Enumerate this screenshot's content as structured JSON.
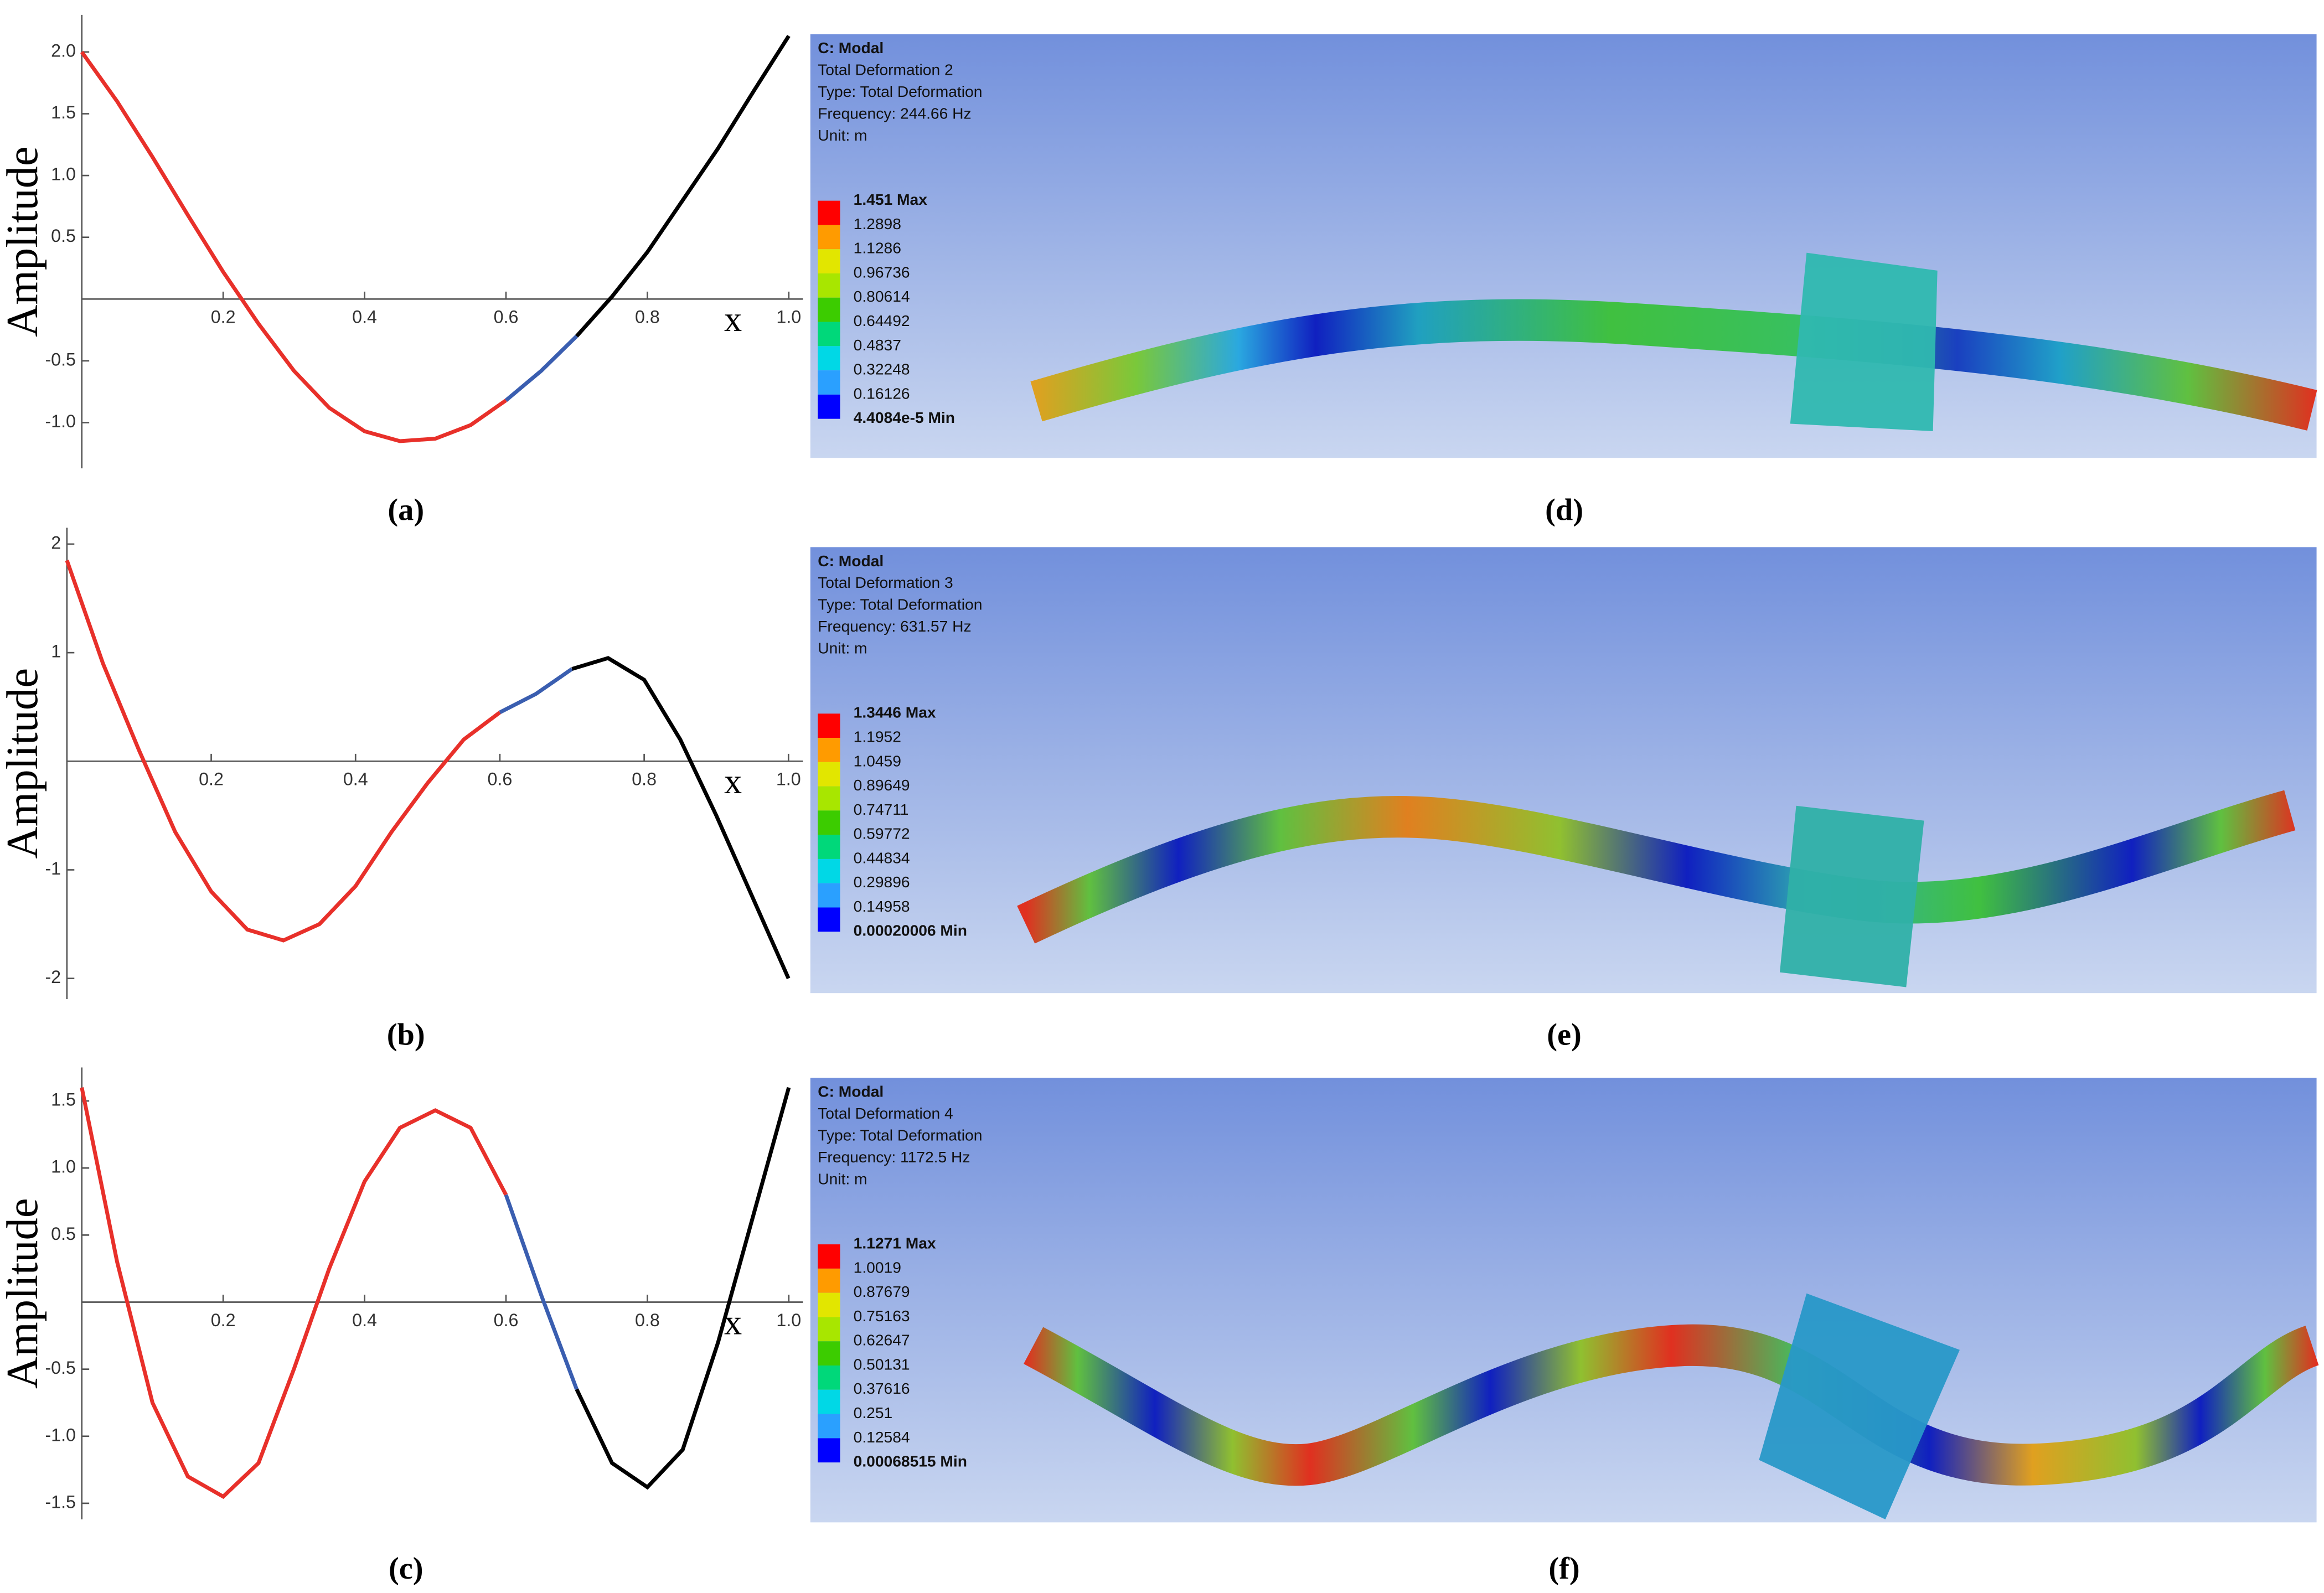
{
  "chart_data": [
    {
      "type": "line",
      "caption": "(a)",
      "y_label": "Amplitude",
      "x_label": "x",
      "x": [
        0,
        0.05,
        0.1,
        0.15,
        0.2,
        0.25,
        0.3,
        0.35,
        0.4,
        0.45,
        0.5,
        0.55,
        0.6,
        0.65,
        0.7,
        0.75,
        0.8,
        0.85,
        0.9,
        0.95,
        1.0
      ],
      "series": [
        {
          "color": "#e8302a",
          "values": [
            2.0,
            1.6,
            1.15,
            0.68,
            0.22,
            -0.2,
            -0.58,
            -0.88,
            -1.07,
            -1.15,
            -1.13,
            -1.02,
            -0.82,
            null,
            null,
            null,
            null,
            null,
            null,
            null,
            null
          ]
        },
        {
          "color": "#3a5eb0",
          "values": [
            null,
            null,
            null,
            null,
            null,
            null,
            null,
            null,
            null,
            null,
            null,
            null,
            -0.82,
            -0.58,
            -0.3,
            null,
            null,
            null,
            null,
            null,
            null
          ]
        },
        {
          "color": "#000000",
          "values": [
            null,
            null,
            null,
            null,
            null,
            null,
            null,
            null,
            null,
            null,
            null,
            null,
            null,
            null,
            -0.3,
            0.02,
            0.38,
            0.8,
            1.22,
            1.68,
            2.13
          ]
        }
      ],
      "xlim": [
        0,
        1.02
      ],
      "ylim": [
        -1.37,
        2.3
      ],
      "xticks": [
        0.2,
        0.4,
        0.6,
        0.8,
        {
          "value": 1.0,
          "label": "1.0"
        }
      ],
      "yticks": [
        {
          "value": -1.0,
          "label": "-1.0"
        },
        -0.5,
        0.5,
        {
          "value": 1.0,
          "label": "1.0"
        },
        1.5,
        {
          "value": 2.0,
          "label": "2.0"
        }
      ]
    },
    {
      "type": "line",
      "caption": "(b)",
      "y_label": "Amplitude",
      "x_label": "x",
      "x": [
        0,
        0.05,
        0.1,
        0.15,
        0.2,
        0.25,
        0.3,
        0.35,
        0.4,
        0.45,
        0.5,
        0.55,
        0.6,
        0.65,
        0.7,
        0.75,
        0.8,
        0.85,
        0.9,
        0.95,
        1.0
      ],
      "series": [
        {
          "color": "#e8302a",
          "values": [
            1.85,
            0.9,
            0.1,
            -0.65,
            -1.2,
            -1.55,
            -1.65,
            -1.5,
            -1.15,
            -0.65,
            -0.2,
            0.2,
            0.45,
            null,
            null,
            null,
            null,
            null,
            null,
            null,
            null
          ]
        },
        {
          "color": "#3a5eb0",
          "values": [
            null,
            null,
            null,
            null,
            null,
            null,
            null,
            null,
            null,
            null,
            null,
            null,
            0.45,
            0.62,
            0.85,
            null,
            null,
            null,
            null,
            null,
            null
          ]
        },
        {
          "color": "#000000",
          "values": [
            null,
            null,
            null,
            null,
            null,
            null,
            null,
            null,
            null,
            null,
            null,
            null,
            null,
            null,
            0.85,
            0.95,
            0.75,
            0.2,
            -0.5,
            -1.25,
            -2.0
          ]
        }
      ],
      "xlim": [
        0,
        1.02
      ],
      "ylim": [
        -2.19,
        2.15
      ],
      "xticks": [
        0.2,
        0.4,
        0.6,
        0.8,
        {
          "value": 1.0,
          "label": "1.0"
        }
      ],
      "yticks": [
        -2,
        -1,
        1,
        2
      ]
    },
    {
      "type": "line",
      "caption": "(c)",
      "y_label": "Amplitude",
      "x_label": "x",
      "x": [
        0,
        0.05,
        0.1,
        0.15,
        0.2,
        0.25,
        0.3,
        0.35,
        0.4,
        0.45,
        0.5,
        0.55,
        0.6,
        0.65,
        0.7,
        0.75,
        0.8,
        0.85,
        0.9,
        0.95,
        1.0
      ],
      "series": [
        {
          "color": "#e8302a",
          "values": [
            1.6,
            0.3,
            -0.75,
            -1.3,
            -1.45,
            -1.2,
            -0.5,
            0.25,
            0.9,
            1.3,
            1.43,
            1.3,
            0.8,
            null,
            null,
            null,
            null,
            null,
            null,
            null,
            null
          ]
        },
        {
          "color": "#3a5eb0",
          "values": [
            null,
            null,
            null,
            null,
            null,
            null,
            null,
            null,
            null,
            null,
            null,
            null,
            0.8,
            0.05,
            -0.65,
            null,
            null,
            null,
            null,
            null,
            null
          ]
        },
        {
          "color": "#000000",
          "values": [
            null,
            null,
            null,
            null,
            null,
            null,
            null,
            null,
            null,
            null,
            null,
            null,
            null,
            null,
            -0.65,
            -1.2,
            -1.38,
            -1.1,
            -0.3,
            0.65,
            1.6
          ]
        }
      ],
      "xlim": [
        0,
        1.02
      ],
      "ylim": [
        -1.62,
        1.75
      ],
      "xticks": [
        0.2,
        0.4,
        0.6,
        0.8,
        {
          "value": 1.0,
          "label": "1.0"
        }
      ],
      "yticks": [
        -1.5,
        {
          "value": -1.0,
          "label": "-1.0"
        },
        -0.5,
        0.5,
        {
          "value": 1.0,
          "label": "1.0"
        },
        1.5
      ]
    }
  ],
  "panels": [
    {
      "caption": "(d)",
      "header": [
        "C: Modal",
        "Total Deformation 2",
        "Type: Total Deformation",
        "Frequency: 244.66 Hz",
        "Unit: m"
      ],
      "legend": [
        "1.451 Max",
        "1.2898",
        "1.1286",
        "0.96736",
        "0.80614",
        "0.64492",
        "0.4837",
        "0.32248",
        "0.16126",
        "4.4084e-5 Min"
      ]
    },
    {
      "caption": "(e)",
      "header": [
        "C: Modal",
        "Total Deformation 3",
        "Type: Total Deformation",
        "Frequency: 631.57 Hz",
        "Unit: m"
      ],
      "legend": [
        "1.3446 Max",
        "1.1952",
        "1.0459",
        "0.89649",
        "0.74711",
        "0.59772",
        "0.44834",
        "0.29896",
        "0.14958",
        "0.00020006 Min"
      ]
    },
    {
      "caption": "(f)",
      "header": [
        "C: Modal",
        "Total Deformation 4",
        "Type: Total Deformation",
        "Frequency: 1172.5 Hz",
        "Unit: m"
      ],
      "legend": [
        "1.1271 Max",
        "1.0019",
        "0.87679",
        "0.75163",
        "0.62647",
        "0.50131",
        "0.37616",
        "0.251",
        "0.12584",
        "0.00068515 Min"
      ]
    }
  ]
}
